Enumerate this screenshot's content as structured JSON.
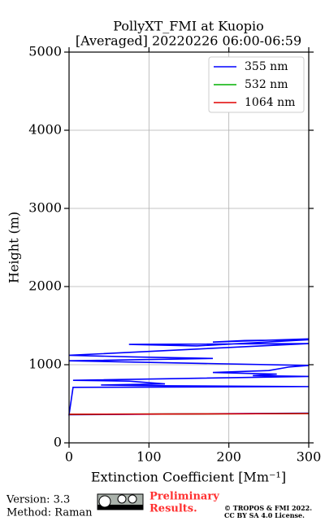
{
  "chart_data": {
    "type": "line",
    "title": [
      "PollyXT_FMI at Kuopio",
      "[Averaged] 20220226 06:00-06:59"
    ],
    "xlabel": "Extinction Coefficient [Mm⁻¹]",
    "ylabel": "Height (m)",
    "xlim": [
      0,
      300
    ],
    "xticks": [
      0,
      100,
      200,
      300
    ],
    "ylim": [
      0,
      5000
    ],
    "yticks": [
      0,
      1000,
      2000,
      3000,
      4000,
      5000
    ],
    "grid": true,
    "legend": "upper right",
    "series": [
      {
        "name": "355 nm",
        "color": "#0000ff",
        "x": [
          300,
          0,
          5,
          300,
          125,
          40,
          120,
          75,
          5,
          300,
          230,
          260,
          180,
          250,
          275,
          300,
          0,
          180,
          80,
          0,
          300,
          75,
          160,
          300,
          220,
          180,
          300
        ],
        "y": [
          380,
          360,
          710,
          720,
          730,
          740,
          755,
          790,
          800,
          850,
          860,
          880,
          900,
          925,
          970,
          990,
          1050,
          1080,
          1100,
          1120,
          1270,
          1260,
          1240,
          1320,
          1310,
          1290,
          1330
        ]
      },
      {
        "name": "532 nm",
        "color": "#00b000",
        "x": [
          0,
          300
        ],
        "y": [
          365,
          375
        ]
      },
      {
        "name": "1064 nm",
        "color": "#e00000",
        "x": [
          0,
          300
        ],
        "y": [
          365,
          375
        ]
      }
    ]
  },
  "footer": {
    "version": "Version: 3.3",
    "method": "Method: Raman",
    "preliminary": [
      "Preliminary",
      "Results."
    ],
    "copyright": [
      "© TROPOS & FMI 2022.",
      "CC BY SA 4.0 License."
    ]
  }
}
